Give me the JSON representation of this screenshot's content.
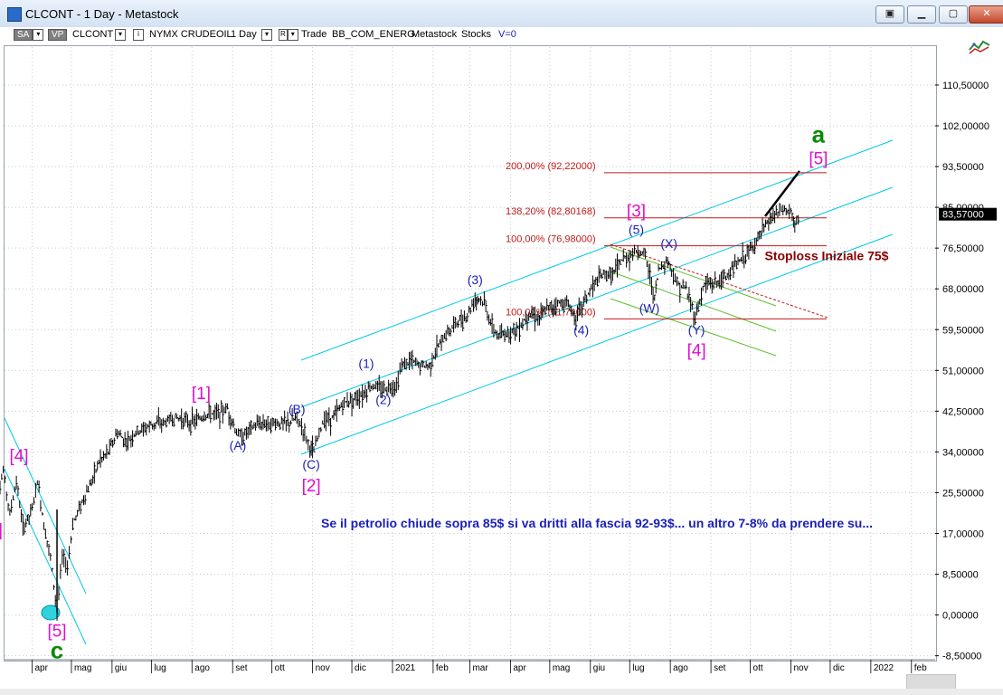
{
  "window": {
    "title": "CLCONT - 1 Day - Metastock"
  },
  "toolbar": {
    "sa": "SA",
    "vp": "VP",
    "symbol": "CLCONT",
    "exchange_desc": "NYMX CRUDEOIL",
    "period": "1 Day",
    "r_label": "R",
    "trade_label": "Trade",
    "account": "BB_COM_ENERG",
    "app": "Metastock",
    "type": "Stocks",
    "v_value": "V=0"
  },
  "colors": {
    "price_bars": "#000000",
    "channel": "#00c8e6",
    "fib": "#c21a1a",
    "wave_blue": "#1a1fb8",
    "wave_magenta": "#e010c8",
    "wave_green": "#0a8a0a",
    "target_line": "#000000",
    "green_channel": "#5fbf2e",
    "red_dashed": "#c21a1a",
    "axis_red": "#8a0000"
  },
  "chart_data": {
    "type": "ohlc",
    "title": "",
    "xlabel": "",
    "ylabel": "",
    "ylim": [
      -8.5,
      119
    ],
    "grid": true,
    "y_axis": {
      "ticks": [
        "110,50000",
        "102,00000",
        "93,50000",
        "85,00000",
        "76,50000",
        "68,00000",
        "59,50000",
        "51,00000",
        "42,50000",
        "34,00000",
        "25,50000",
        "17,00000",
        "8,50000",
        "0,00000",
        "-8,50000"
      ],
      "tick_values": [
        110.5,
        102,
        93.5,
        85,
        76.5,
        68,
        59.5,
        51,
        42.5,
        34,
        25.5,
        17,
        8.5,
        0,
        -8.5
      ],
      "last_price": "83,57000",
      "last_price_value": 83.57
    },
    "x_axis": {
      "labels": [
        {
          "t": "apr",
          "d": "2020-04-01"
        },
        {
          "t": "mag",
          "d": "2020-05-01"
        },
        {
          "t": "giu",
          "d": "2020-06-01"
        },
        {
          "t": "lug",
          "d": "2020-07-01"
        },
        {
          "t": "ago",
          "d": "2020-08-01"
        },
        {
          "t": "set",
          "d": "2020-09-01"
        },
        {
          "t": "ott",
          "d": "2020-10-01"
        },
        {
          "t": "nov",
          "d": "2020-11-01"
        },
        {
          "t": "dic",
          "d": "2020-12-01"
        },
        {
          "t": "2021",
          "d": "2021-01-01"
        },
        {
          "t": "feb",
          "d": "2021-02-01"
        },
        {
          "t": "mar",
          "d": "2021-03-01"
        },
        {
          "t": "apr",
          "d": "2021-04-01"
        },
        {
          "t": "mag",
          "d": "2021-05-01"
        },
        {
          "t": "giu",
          "d": "2021-06-01"
        },
        {
          "t": "lug",
          "d": "2021-07-01"
        },
        {
          "t": "ago",
          "d": "2021-08-01"
        },
        {
          "t": "set",
          "d": "2021-09-01"
        },
        {
          "t": "ott",
          "d": "2021-10-01"
        },
        {
          "t": "nov",
          "d": "2021-11-01"
        },
        {
          "t": "dic",
          "d": "2021-12-01"
        },
        {
          "t": "2022",
          "d": "2022-01-01"
        },
        {
          "t": "feb",
          "d": "2022-02-01"
        }
      ]
    },
    "price_path": [
      [
        "2020-03-01",
        29
      ],
      [
        "2020-03-05",
        24
      ],
      [
        "2020-03-10",
        30
      ],
      [
        "2020-03-15",
        21
      ],
      [
        "2020-03-20",
        28
      ],
      [
        "2020-03-25",
        18
      ],
      [
        "2020-04-01",
        22
      ],
      [
        "2020-04-05",
        28
      ],
      [
        "2020-04-10",
        19
      ],
      [
        "2020-04-15",
        12
      ],
      [
        "2020-04-20",
        0.5
      ],
      [
        "2020-04-24",
        12
      ],
      [
        "2020-04-28",
        10
      ],
      [
        "2020-05-02",
        19
      ],
      [
        "2020-05-08",
        23
      ],
      [
        "2020-05-15",
        27
      ],
      [
        "2020-05-22",
        32
      ],
      [
        "2020-05-29",
        34
      ],
      [
        "2020-06-05",
        38
      ],
      [
        "2020-06-12",
        36
      ],
      [
        "2020-06-19",
        38
      ],
      [
        "2020-06-26",
        39
      ],
      [
        "2020-07-03",
        40
      ],
      [
        "2020-07-10",
        40
      ],
      [
        "2020-07-17",
        41
      ],
      [
        "2020-07-24",
        41
      ],
      [
        "2020-07-31",
        40
      ],
      [
        "2020-08-07",
        41
      ],
      [
        "2020-08-14",
        42
      ],
      [
        "2020-08-21",
        42
      ],
      [
        "2020-08-28",
        43
      ],
      [
        "2020-09-04",
        38
      ],
      [
        "2020-09-08",
        37
      ],
      [
        "2020-09-15",
        39
      ],
      [
        "2020-09-22",
        40
      ],
      [
        "2020-09-29",
        40
      ],
      [
        "2020-10-06",
        40
      ],
      [
        "2020-10-13",
        40
      ],
      [
        "2020-10-20",
        41
      ],
      [
        "2020-10-26",
        38
      ],
      [
        "2020-10-30",
        35
      ],
      [
        "2020-11-02",
        34
      ],
      [
        "2020-11-06",
        38
      ],
      [
        "2020-11-10",
        41
      ],
      [
        "2020-11-16",
        41
      ],
      [
        "2020-11-24",
        44
      ],
      [
        "2020-12-01",
        45
      ],
      [
        "2020-12-09",
        46
      ],
      [
        "2020-12-17",
        48
      ],
      [
        "2020-12-23",
        47
      ],
      [
        "2021-01-04",
        48
      ],
      [
        "2021-01-08",
        52
      ],
      [
        "2021-01-15",
        53
      ],
      [
        "2021-01-22",
        52
      ],
      [
        "2021-01-29",
        52
      ],
      [
        "2021-02-05",
        56
      ],
      [
        "2021-02-12",
        59
      ],
      [
        "2021-02-19",
        61
      ],
      [
        "2021-02-26",
        62
      ],
      [
        "2021-03-05",
        66
      ],
      [
        "2021-03-08",
        66
      ],
      [
        "2021-03-12",
        65
      ],
      [
        "2021-03-18",
        60
      ],
      [
        "2021-03-23",
        58
      ],
      [
        "2021-03-31",
        59
      ],
      [
        "2021-04-08",
        60
      ],
      [
        "2021-04-15",
        63
      ],
      [
        "2021-04-22",
        62
      ],
      [
        "2021-04-30",
        64
      ],
      [
        "2021-05-07",
        65
      ],
      [
        "2021-05-14",
        65
      ],
      [
        "2021-05-21",
        62
      ],
      [
        "2021-05-28",
        66
      ],
      [
        "2021-06-04",
        69
      ],
      [
        "2021-06-11",
        71
      ],
      [
        "2021-06-18",
        71
      ],
      [
        "2021-06-25",
        74
      ],
      [
        "2021-07-02",
        75
      ],
      [
        "2021-07-06",
        76
      ],
      [
        "2021-07-13",
        75
      ],
      [
        "2021-07-20",
        66
      ],
      [
        "2021-07-23",
        72
      ],
      [
        "2021-07-30",
        74
      ],
      [
        "2021-08-02",
        72
      ],
      [
        "2021-08-06",
        69
      ],
      [
        "2021-08-13",
        68
      ],
      [
        "2021-08-20",
        62
      ],
      [
        "2021-08-27",
        69
      ],
      [
        "2021-09-03",
        69
      ],
      [
        "2021-09-10",
        70
      ],
      [
        "2021-09-17",
        72
      ],
      [
        "2021-09-24",
        74
      ],
      [
        "2021-10-01",
        76
      ],
      [
        "2021-10-08",
        79
      ],
      [
        "2021-10-15",
        82
      ],
      [
        "2021-10-22",
        84
      ],
      [
        "2021-10-26",
        84.5
      ],
      [
        "2021-11-01",
        84
      ],
      [
        "2021-11-04",
        81
      ],
      [
        "2021-11-08",
        83.57
      ]
    ],
    "fib_levels": [
      {
        "label": "200,00% (92,22000)",
        "value": 92.22
      },
      {
        "label": "138,20% (82,80168)",
        "value": 82.80168
      },
      {
        "label": "100,00% (76,98000)",
        "value": 76.98
      },
      {
        "label": "100,00% (61,74000)",
        "value": 61.74
      }
    ],
    "annotations": [
      {
        "text": "[4]",
        "style": "magenta",
        "d": "2020-03-22",
        "y": 32
      },
      {
        "text": "3]",
        "style": "magenta",
        "d": "2020-03-04",
        "y": 16.5
      },
      {
        "text": "[5]",
        "style": "magenta",
        "d": "2020-04-20",
        "y": -4.5
      },
      {
        "text": "c",
        "style": "green",
        "d": "2020-04-20",
        "y": -9
      },
      {
        "text": "[1]",
        "style": "magenta",
        "d": "2020-08-08",
        "y": 45
      },
      {
        "text": "(A)",
        "style": "blue",
        "d": "2020-09-05",
        "y": 34.5
      },
      {
        "text": "(B)",
        "style": "blue",
        "d": "2020-10-20",
        "y": 42
      },
      {
        "text": "(C)",
        "style": "blue",
        "d": "2020-10-31",
        "y": 30.5
      },
      {
        "text": "[2]",
        "style": "magenta",
        "d": "2020-10-31",
        "y": 25.8
      },
      {
        "text": "(1)",
        "style": "blue",
        "d": "2020-12-12",
        "y": 51.5
      },
      {
        "text": "(2)",
        "style": "blue",
        "d": "2020-12-25",
        "y": 44
      },
      {
        "text": "(3)",
        "style": "blue",
        "d": "2021-03-05",
        "y": 69
      },
      {
        "text": "(4)",
        "style": "blue",
        "d": "2021-05-25",
        "y": 58.5
      },
      {
        "text": "(5)",
        "style": "blue",
        "d": "2021-07-06",
        "y": 79.5
      },
      {
        "text": "[3]",
        "style": "magenta",
        "d": "2021-07-06",
        "y": 83
      },
      {
        "text": "(W)",
        "style": "blue",
        "d": "2021-07-16",
        "y": 63
      },
      {
        "text": "(X)",
        "style": "blue",
        "d": "2021-07-31",
        "y": 76.5
      },
      {
        "text": "(Y)",
        "style": "blue",
        "d": "2021-08-21",
        "y": 58.5
      },
      {
        "text": "[4]",
        "style": "magenta",
        "d": "2021-08-21",
        "y": 54
      },
      {
        "text": "[5]",
        "style": "magenta",
        "d": "2021-11-22",
        "y": 94
      },
      {
        "text": "a",
        "style": "green",
        "d": "2021-11-22",
        "y": 98.5
      },
      {
        "text": "Stoploss Iniziale 75$",
        "style": "darkred",
        "d": "2021-10-12",
        "y": 74
      }
    ],
    "comment": "Se il petrolio chiude sopra 85$ si va dritti alla fascia 92-93$... un altro 7-8% da prendere su..."
  }
}
